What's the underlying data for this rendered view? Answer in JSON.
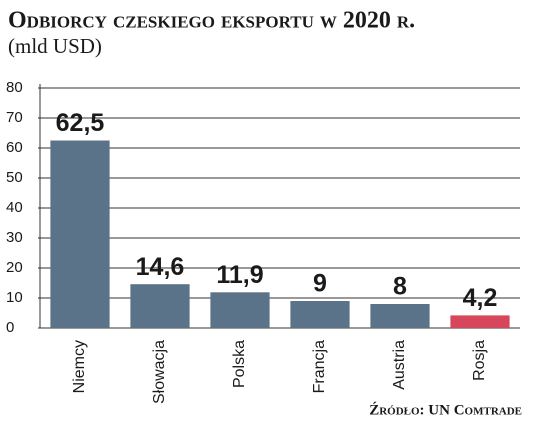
{
  "chart_data": {
    "type": "bar",
    "title": "Odbiorcy czeskiego eksportu w 2020 r.",
    "subtitle": "(mld USD)",
    "source": "Źródło: UN Comtrade",
    "categories": [
      "Niemcy",
      "Słowacja",
      "Polska",
      "Francja",
      "Austria",
      "Rosja"
    ],
    "values": [
      62.5,
      14.6,
      11.9,
      9,
      8,
      4.2
    ],
    "value_labels": [
      "62,5",
      "14,6",
      "11,9",
      "9",
      "8",
      "4,2"
    ],
    "colors": [
      "#5b7388",
      "#5b7388",
      "#5b7388",
      "#5b7388",
      "#5b7388",
      "#d6475c"
    ],
    "ylim": [
      0,
      80
    ],
    "yticks": [
      0,
      10,
      20,
      30,
      40,
      50,
      60,
      70,
      80
    ],
    "grid": true
  }
}
